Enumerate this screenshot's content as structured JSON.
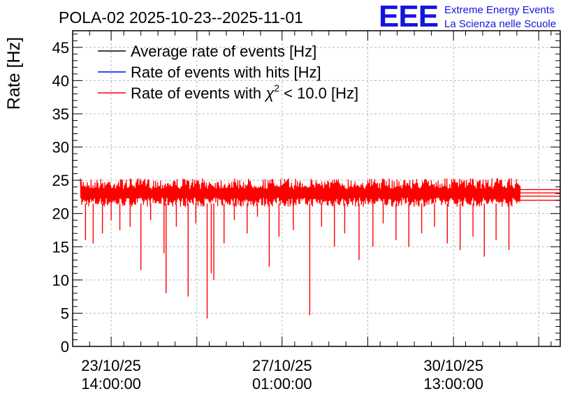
{
  "title": "POLA-02 2025-10-23--2025-11-01",
  "logo": {
    "letters": "EEE",
    "line1": "Extreme Energy Events",
    "line2": "La Scienza nelle Scuole",
    "color": "#1515e0"
  },
  "chart_data": {
    "type": "line",
    "ylabel": "Rate [Hz]",
    "ylim": [
      0,
      47.5
    ],
    "xlim_days": [
      0,
      9.5
    ],
    "y_ticks": [
      "0",
      "5",
      "10",
      "15",
      "20",
      "25",
      "30",
      "35",
      "40",
      "45"
    ],
    "x_ticks": [
      {
        "date": "23/10/25",
        "time": "14:00:00"
      },
      {
        "date": "27/10/25",
        "time": "01:00:00"
      },
      {
        "date": "30/10/25",
        "time": "13:00:00"
      }
    ],
    "grid": true,
    "legend_position": "top-left",
    "series": [
      {
        "name": "Average rate of events [Hz]",
        "color": "#000000",
        "mean": 23.0
      },
      {
        "name": "Rate of events with hits [Hz]",
        "color": "#0000ff",
        "mean": 23.0
      },
      {
        "name": "Rate of events with χ² < 10.0 [Hz]",
        "name_prefix": "Rate of events with ",
        "name_chi": "χ",
        "name_sup": "2",
        "name_suffix": " < 10.0 [Hz]",
        "color": "#ff0000",
        "mean": 23.0,
        "band": [
          21.0,
          25.3
        ]
      }
    ],
    "dips": [
      {
        "x": 0.25,
        "y": 16.0
      },
      {
        "x": 0.4,
        "y": 15.5
      },
      {
        "x": 0.58,
        "y": 17.0
      },
      {
        "x": 0.75,
        "y": 19.0
      },
      {
        "x": 0.92,
        "y": 17.5
      },
      {
        "x": 1.12,
        "y": 18.0
      },
      {
        "x": 1.33,
        "y": 11.5
      },
      {
        "x": 1.52,
        "y": 19.0
      },
      {
        "x": 1.78,
        "y": 14.0
      },
      {
        "x": 1.82,
        "y": 8.0
      },
      {
        "x": 2.02,
        "y": 18.0
      },
      {
        "x": 2.25,
        "y": 7.5
      },
      {
        "x": 2.4,
        "y": 18.5
      },
      {
        "x": 2.62,
        "y": 4.2
      },
      {
        "x": 2.7,
        "y": 11.0
      },
      {
        "x": 2.75,
        "y": 10.0
      },
      {
        "x": 2.95,
        "y": 15.5
      },
      {
        "x": 3.15,
        "y": 19.0
      },
      {
        "x": 3.4,
        "y": 17.0
      },
      {
        "x": 3.6,
        "y": 19.5
      },
      {
        "x": 3.83,
        "y": 12.0
      },
      {
        "x": 4.02,
        "y": 16.5
      },
      {
        "x": 4.3,
        "y": 17.5
      },
      {
        "x": 4.62,
        "y": 4.7
      },
      {
        "x": 4.85,
        "y": 18.0
      },
      {
        "x": 5.1,
        "y": 15.0
      },
      {
        "x": 5.3,
        "y": 17.0
      },
      {
        "x": 5.58,
        "y": 13.0
      },
      {
        "x": 5.85,
        "y": 15.0
      },
      {
        "x": 6.05,
        "y": 18.5
      },
      {
        "x": 6.3,
        "y": 16.0
      },
      {
        "x": 6.55,
        "y": 15.0
      },
      {
        "x": 6.8,
        "y": 17.0
      },
      {
        "x": 7.05,
        "y": 18.0
      },
      {
        "x": 7.3,
        "y": 15.5
      },
      {
        "x": 7.55,
        "y": 14.5
      },
      {
        "x": 7.8,
        "y": 16.5
      },
      {
        "x": 8.02,
        "y": 13.5
      },
      {
        "x": 8.25,
        "y": 16.0
      },
      {
        "x": 8.5,
        "y": 14.5
      }
    ]
  }
}
